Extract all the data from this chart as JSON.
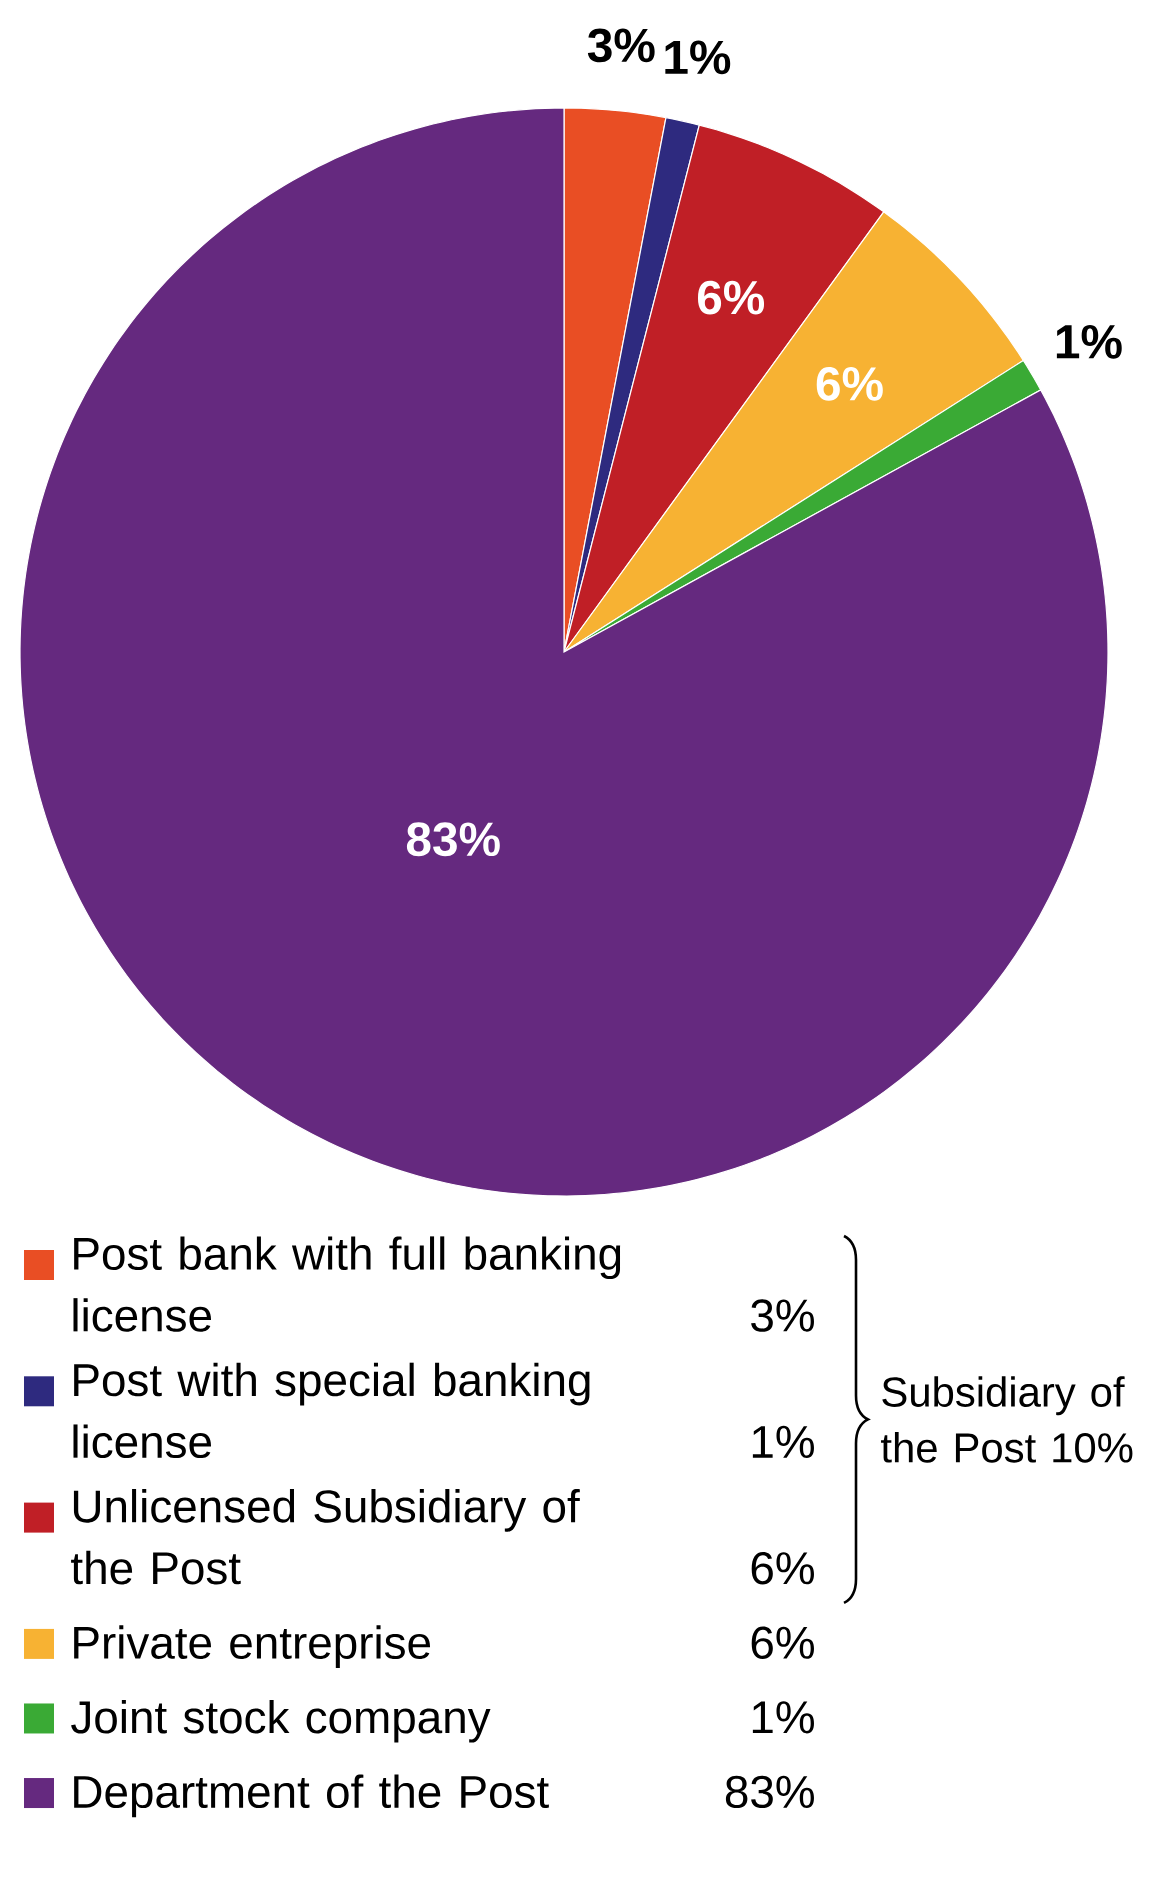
{
  "chart_data": {
    "type": "pie",
    "categories": [
      "Post bank with full banking license",
      "Post with special banking license",
      "Unlicensed Subsidiary of the Post",
      "Private entreprise",
      "Joint stock company",
      "Department of the Post"
    ],
    "values": [
      3,
      1,
      6,
      6,
      1,
      83
    ],
    "colors": [
      "#e94e24",
      "#2e2a7f",
      "#c01f26",
      "#f7b233",
      "#3aaa35",
      "#65297f"
    ],
    "value_labels": [
      "3%",
      "1%",
      "6%",
      "6%",
      "1%",
      "83%"
    ],
    "legend": "bottom",
    "annotations": [
      "Subsidiary of the Post 10%"
    ]
  }
}
